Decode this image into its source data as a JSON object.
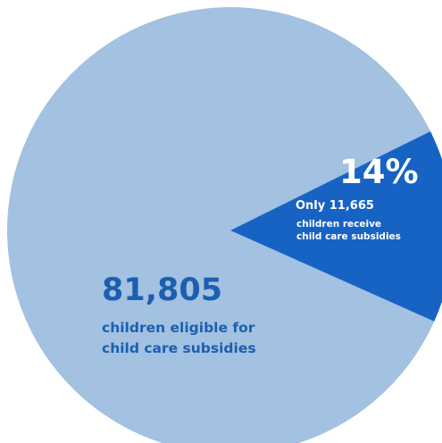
{
  "chart_data": {
    "type": "pie",
    "slices": [
      {
        "value": 86,
        "big_number": "81,805",
        "lines": [
          "children eligible for",
          "child care subsidies"
        ],
        "color": "#a3c1e0",
        "text_color": "#1c5fb0"
      },
      {
        "value": 14,
        "big_number": "14%",
        "lines": [
          "Only 11,665",
          "children receive",
          "child care subsidies"
        ],
        "color": "#1763c4",
        "text_color": "#ffffff"
      }
    ]
  }
}
